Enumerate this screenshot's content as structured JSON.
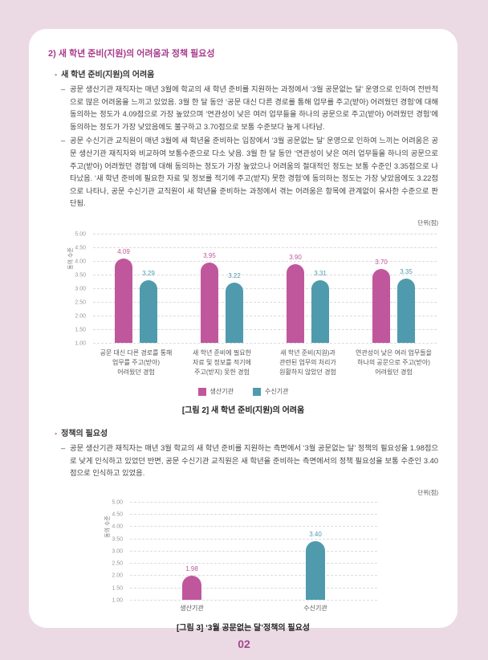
{
  "doc": {
    "title": "2) 새 학년 준비(지원)의 어려움과 정책 필요성",
    "page_number": "02"
  },
  "sections": [
    {
      "bullet": "•",
      "heading": "새 학년 준비(지원)의 어려움",
      "paragraphs": [
        {
          "marker": "–",
          "text": "공문 생산기관 재직자는 매년 3월에 학교의 새 학년 준비를 지원하는 과정에서 ‘3월 공문없는 달’ 운영으로 인하여 전반적으로 많은 어려움을 느끼고 있었음. 3월 한 달 동안 ‘공문 대신 다른 경로를 통해 업무를 주고(받아) 어려웠던 경험’에 대해 동의하는 정도가 4.09점으로 가장 높았으며 ‘연관성이 낮은 여러 업무들을 하나의 공문으로 주고(받아) 어려웠던 경험’에 동의하는 정도가 가장 낮았음에도 불구하고 3.70점으로 보통 수준보다 높게 나타남."
        },
        {
          "marker": "–",
          "text": "공문 수신기관 교직원이 매년 3월에 새 학년을 준비하는 입장에서 ‘3월 공문없는 달’ 운영으로 인하여 느끼는 어려움은 공문 생산기관 재직자와 비교하여 보통수준으로 다소 낮음. 3월 한 달 동안 ‘연관성이 낮은 여러 업무들을 하나의 공문으로 주고(받아) 어려웠던 경험’에 대해 동의하는 정도가 가장 높았으나 어려움의 절대적인 정도는 보통 수준인 3.35점으로 나타났음. ‘새 학년 준비에 필요한 자료 및 정보를 적기에 주고(받지) 못한 경험’에 동의하는 정도는 가장 낮았음에도 3.22점으로 나타나, 공문 수신기관 교직원이 새 학년을 준비하는 과정에서 겪는 어려움은 항목에 관계없이 유사한 수준으로 판단됨."
        }
      ]
    },
    {
      "bullet": "•",
      "heading": "정책의 필요성",
      "paragraphs": [
        {
          "marker": "–",
          "text": "공문 생산기관 재직자는 매년 3월 학교의 새 학년 준비를 지원하는 측면에서 ‘3월 공문없는 달’ 정책의 필요성을 1.98점으로 낮게 인식하고 있었던 반면, 공문 수신기관 교직원은 새 학년을 준비하는 측면에서의 정책 필요성을 보통 수준인 3.40점으로 인식하고 있었음."
        }
      ]
    }
  ],
  "chart_data": [
    {
      "type": "bar",
      "title": "[그림 2] 새 학년 준비(지원)의 어려움",
      "unit_label": "단위(점)",
      "ylabel": "동의 수준",
      "ylim": [
        1.0,
        5.0
      ],
      "yticks": [
        "5.00",
        "4.50",
        "4.00",
        "3.50",
        "3.00",
        "2.50",
        "2.00",
        "1.50",
        "1.00"
      ],
      "grid": "horizontal-dashed",
      "legend_position": "bottom-center",
      "categories": [
        [
          "공문 대신 다른 경로를 통해",
          "업무를 주고(받아)",
          "어려웠던 경험"
        ],
        [
          "새 학년 준비에 필요한",
          "자료 및 정보를 적기에",
          "주고(받지) 못한 경험"
        ],
        [
          "새 학년 준비(지원)과",
          "관련된 업무의 처리가",
          "원활하지 않았던 경험"
        ],
        [
          "연관성이 낮은 여러 업무들을",
          "하나의 공문으로 주고(받아)",
          "어려웠던 경험"
        ]
      ],
      "series": [
        {
          "name": "생산기관",
          "color": "#c0579d",
          "values": [
            4.09,
            3.95,
            3.9,
            3.7
          ]
        },
        {
          "name": "수신기관",
          "color": "#4f9bad",
          "values": [
            3.29,
            3.22,
            3.31,
            3.35
          ]
        }
      ]
    },
    {
      "type": "bar",
      "title": "[그림 3] ‘3월 공문없는 달’정책의 필요성",
      "unit_label": "단위(점)",
      "ylabel": "동의 수준",
      "ylim": [
        1.0,
        5.0
      ],
      "yticks": [
        "5.00",
        "4.50",
        "4.00",
        "3.50",
        "3.00",
        "2.50",
        "2.00",
        "1.50",
        "1.00"
      ],
      "grid": "horizontal-dashed",
      "legend_position": "none",
      "categories": [
        "생산기관",
        "수신기관"
      ],
      "values": [
        1.98,
        3.4
      ],
      "bar_colors": [
        "#c0579d",
        "#4f9bad"
      ]
    }
  ],
  "colors": {
    "page_background": "#ebdae4",
    "card_background": "#ffffff",
    "heading_accent": "#a93a8c",
    "producer_pink": "#c0579d",
    "receiver_teal": "#4f9bad",
    "page_number": "#a4468f"
  }
}
